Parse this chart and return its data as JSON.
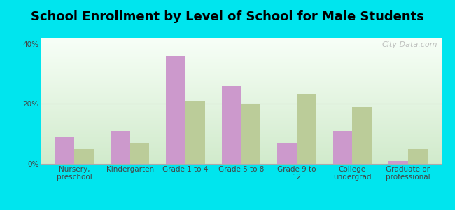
{
  "title": "School Enrollment by Level of School for Male Students",
  "categories": [
    "Nursery,\npreschool",
    "Kindergarten",
    "Grade 1 to 4",
    "Grade 5 to 8",
    "Grade 9 to\n12",
    "College\nundergrad",
    "Graduate or\nprofessional"
  ],
  "skowhegan": [
    9,
    11,
    36,
    26,
    7,
    11,
    1
  ],
  "maine": [
    5,
    7,
    21,
    20,
    23,
    19,
    5
  ],
  "skowhegan_color": "#cc99cc",
  "maine_color": "#bbcc99",
  "background_color": "#00e5ee",
  "ylim": [
    0,
    42
  ],
  "yticks": [
    0,
    20,
    40
  ],
  "ytick_labels": [
    "0%",
    "20%",
    "40%"
  ],
  "bar_width": 0.35,
  "title_fontsize": 13,
  "tick_fontsize": 7.5,
  "legend_fontsize": 9,
  "watermark": "City-Data.com"
}
